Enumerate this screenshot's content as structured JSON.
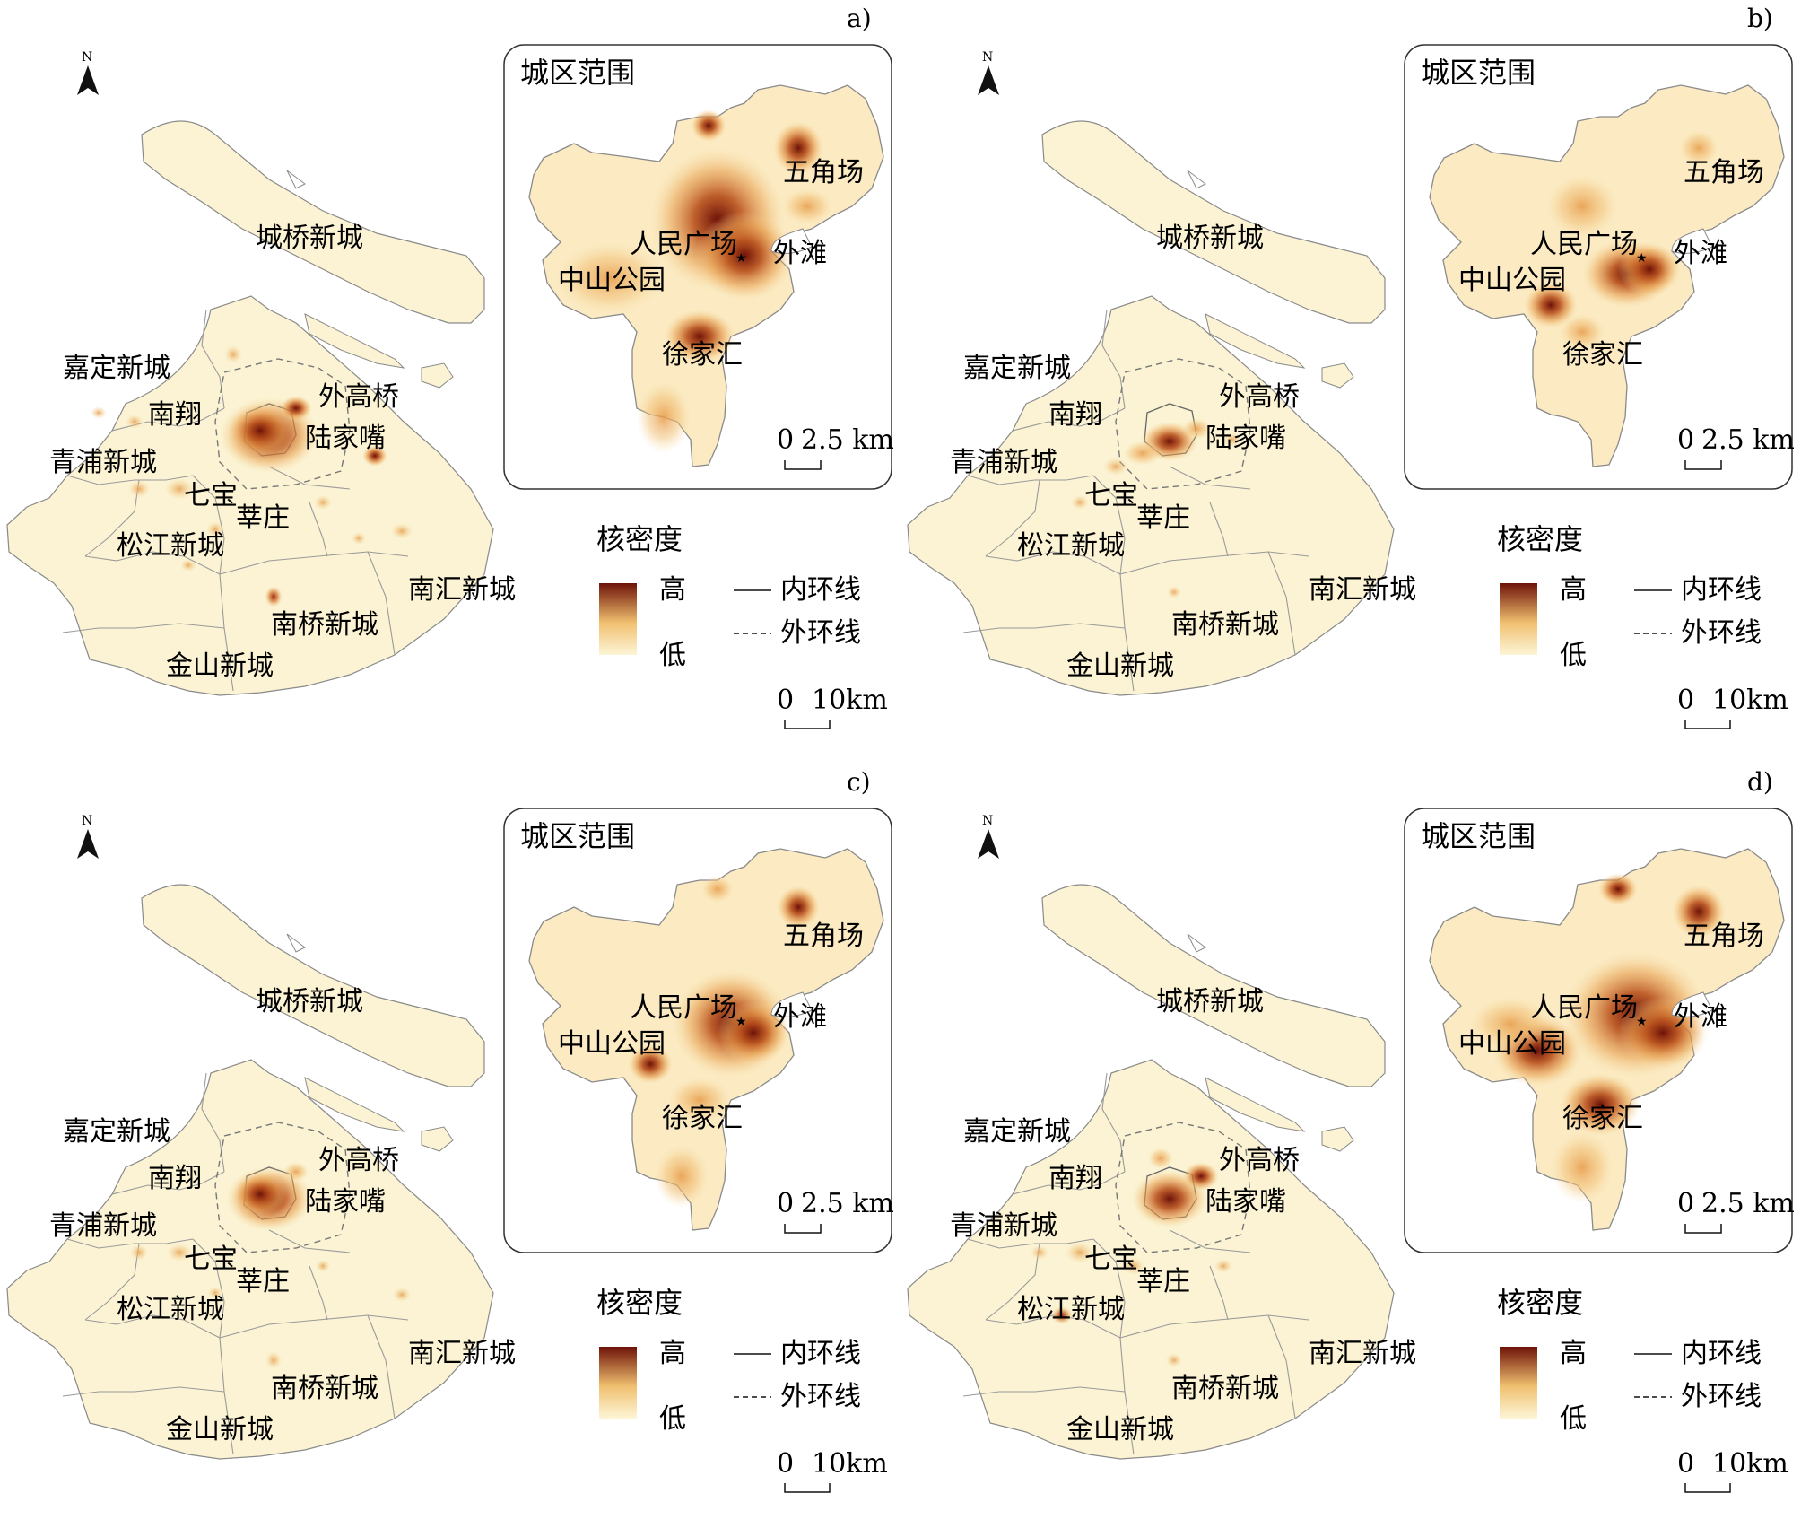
{
  "panels": [
    {
      "id": "a)",
      "label": "a)"
    },
    {
      "id": "b)",
      "label": "b)"
    },
    {
      "id": "c)",
      "label": "c)"
    },
    {
      "id": "d)",
      "label": "d)"
    }
  ],
  "north_label": "N",
  "map_labels": {
    "chengqiao": "城桥新城",
    "jiading": "嘉定新城",
    "nanxiang": "南翔",
    "waigaoqiao": "外高桥",
    "lujiazui": "陆家嘴",
    "qingpu": "青浦新城",
    "qibao": "七宝",
    "xinzhuang": "莘庄",
    "songjiang": "松江新城",
    "nanhui": "南汇新城",
    "nanqiao": "南桥新城",
    "jinshan": "金山新城"
  },
  "inset": {
    "title": "城区范围",
    "labels": {
      "wujiaochang": "五角场",
      "renmin": "人民广场",
      "waitan": "外滩",
      "zhongshan": "中山公园",
      "xujiahui": "徐家汇"
    },
    "scale_zero": "0",
    "scale_value": "2.5 km"
  },
  "legend": {
    "title": "核密度",
    "high": "高",
    "low": "低",
    "inner_ring": "内环线",
    "outer_ring": "外环线"
  },
  "scale": {
    "zero": "0",
    "value": "10km"
  },
  "colors": {
    "low": "#fdf3cf",
    "mid": "#f0b060",
    "high": "#7a1a0a",
    "land": "#fbf3d3",
    "stroke": "#9a9a9a"
  }
}
